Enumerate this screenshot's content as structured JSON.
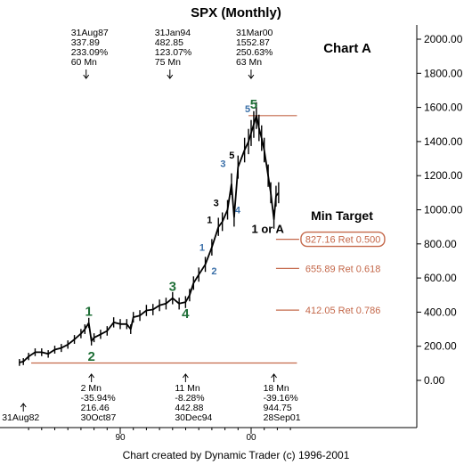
{
  "chart_data": {
    "type": "line",
    "title": "SPX  (Monthly)",
    "chart_label": "Chart A",
    "footer": "Chart created by Dynamic Trader (c) 1996-2001",
    "ylim": [
      -100,
      2100
    ],
    "y_ticks": [
      2000,
      1800,
      1600,
      1400,
      1200,
      1000,
      800,
      600,
      400,
      200,
      0
    ],
    "y_tick_labels": [
      "2000.00",
      "1800.00",
      "1600.00",
      "1400.00",
      "1200.00",
      "1000.00",
      "800.00",
      "600.00",
      "400.00",
      "200.00",
      "0.00"
    ],
    "x_ticks": [
      {
        "x": 1990,
        "label": "90"
      },
      {
        "x": 2000,
        "label": "00"
      }
    ],
    "series": [
      {
        "x": [
          1982.3,
          1982.6,
          1983.0,
          1983.5,
          1984.0,
          1984.5,
          1985.0,
          1985.5,
          1986.0,
          1986.5,
          1987.0,
          1987.3,
          1987.6,
          1987.8,
          1988.0,
          1988.5,
          1989.0,
          1989.5,
          1990.0,
          1990.5,
          1990.8,
          1991.0,
          1991.5,
          1992.0,
          1992.5,
          1993.0,
          1993.5,
          1994.0,
          1994.5,
          1994.99,
          1995.3,
          1995.6,
          1996.0,
          1996.5,
          1997.0,
          1997.5,
          1997.8,
          1998.2,
          1998.5,
          1998.7,
          1999.0,
          1999.5,
          1999.8,
          2000.0,
          2000.2,
          2000.4,
          2000.6,
          2000.8,
          2001.0,
          2001.3,
          2001.5,
          2001.74,
          2001.9,
          2002.1
        ],
        "y": [
          105,
          110,
          140,
          165,
          165,
          155,
          180,
          190,
          210,
          240,
          274,
          300,
          337,
          230,
          250,
          270,
          290,
          340,
          330,
          330,
          300,
          370,
          380,
          410,
          415,
          440,
          450,
          482,
          450,
          459,
          500,
          570,
          620,
          680,
          780,
          900,
          930,
          1000,
          1150,
          957,
          1250,
          1350,
          1400,
          1450,
          1500,
          1552,
          1480,
          1420,
          1350,
          1200,
          1100,
          944,
          1080,
          1100
        ]
      }
    ],
    "wave_labels": [
      {
        "text": "1",
        "x": 1987.6,
        "y": 337,
        "color": "#1f6f37",
        "size": "large"
      },
      {
        "text": "2",
        "x": 1987.8,
        "y": 230,
        "color": "#1f6f37",
        "size": "large"
      },
      {
        "text": "3",
        "x": 1994.0,
        "y": 482,
        "color": "#1f6f37",
        "size": "large"
      },
      {
        "text": "4",
        "x": 1994.99,
        "y": 459,
        "color": "#1f6f37",
        "size": "large"
      },
      {
        "text": "5",
        "x": 2000.2,
        "y": 1552,
        "color": "#1f6f37",
        "size": "large"
      },
      {
        "text": "1",
        "x": 1996.8,
        "y": 740,
        "color": "#3a6fa8",
        "size": "small"
      },
      {
        "text": "2",
        "x": 1996.9,
        "y": 600,
        "color": "#3a6fa8",
        "size": "small"
      },
      {
        "text": "3",
        "x": 1998.4,
        "y": 1230,
        "color": "#3a6fa8",
        "size": "small"
      },
      {
        "text": "4",
        "x": 1998.7,
        "y": 957,
        "color": "#3a6fa8",
        "size": "small"
      },
      {
        "text": "5",
        "x": 2000.0,
        "y": 1540,
        "color": "#3a6fa8",
        "size": "small"
      },
      {
        "text": "1",
        "x": 1997.3,
        "y": 900,
        "color": "#000000",
        "size": "small"
      },
      {
        "text": "3",
        "x": 1997.8,
        "y": 1000,
        "color": "#000000",
        "size": "small"
      },
      {
        "text": "5",
        "x": 1999.0,
        "y": 1280,
        "color": "#000000",
        "size": "small"
      },
      {
        "text": "1 or A",
        "x": 2001.0,
        "y": 980,
        "color": "#000000",
        "size": "medium"
      }
    ],
    "top_annotations": [
      {
        "x": 1987.6,
        "lines": [
          "31Aug87",
          "337.89",
          "233.09%",
          "60 Mn"
        ]
      },
      {
        "x": 1994.0,
        "lines": [
          "31Jan94",
          "482.85",
          "123.07%",
          "75 Mn"
        ]
      },
      {
        "x": 2000.2,
        "lines": [
          "31Mar00",
          "1552.87",
          "250.63%",
          "63 Mn"
        ]
      }
    ],
    "bottom_annotations": [
      {
        "x": 1982.6,
        "lines": [
          "31Aug82"
        ]
      },
      {
        "x": 1987.8,
        "lines": [
          "2 Mn",
          "-35.94%",
          "216.46",
          "30Oct87"
        ]
      },
      {
        "x": 1994.99,
        "lines": [
          "11 Mn",
          "-8.28%",
          "442.88",
          "30Dec94"
        ]
      },
      {
        "x": 2001.74,
        "lines": [
          "18 Mn",
          "-39.16%",
          "944.75",
          "28Sep01"
        ]
      }
    ],
    "horizontal_lines": [
      {
        "y": 1552,
        "x_start": 1999.8,
        "x_end": 2003.5,
        "color": "#c4684a",
        "label": ""
      },
      {
        "y": 102,
        "x_start": 1983.2,
        "x_end": 2003.5,
        "color": "#c4684a",
        "label": ""
      },
      {
        "y": 827.16,
        "x_start": 2001.9,
        "x_end": 2003.5,
        "color": "#c4684a",
        "label": "827.16 Ret 0.500",
        "boxed": true
      },
      {
        "y": 655.89,
        "x_start": 2001.9,
        "x_end": 2003.5,
        "color": "#c4684a",
        "label": "655.89 Ret 0.618",
        "boxed": false
      },
      {
        "y": 412.05,
        "x_start": 2001.9,
        "x_end": 2003.5,
        "color": "#c4684a",
        "label": "412.05 Ret 0.786",
        "boxed": false
      }
    ],
    "min_target_label": "Min Target"
  }
}
